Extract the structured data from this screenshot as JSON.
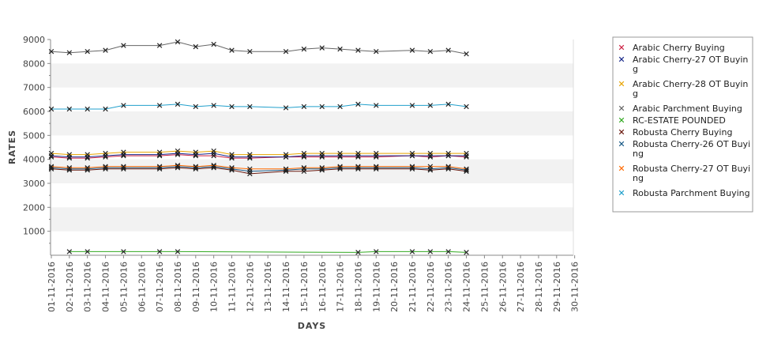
{
  "chart_data": {
    "type": "line",
    "title": "",
    "xlabel": "DAYS",
    "ylabel": "RATES",
    "ylim": [
      0,
      9000
    ],
    "yticks": [
      1000,
      2000,
      3000,
      4000,
      5000,
      6000,
      7000,
      8000,
      9000
    ],
    "grid": "alternating horizontal bands",
    "legend_position": "right",
    "categories": [
      "01-11-2016",
      "02-11-2016",
      "03-11-2016",
      "04-11-2016",
      "05-11-2016",
      "06-11-2016",
      "07-11-2016",
      "08-11-2016",
      "09-11-2016",
      "10-11-2016",
      "11-11-2016",
      "12-11-2016",
      "13-11-2016",
      "14-11-2016",
      "15-11-2016",
      "16-11-2016",
      "17-11-2016",
      "18-11-2016",
      "19-11-2016",
      "20-11-2016",
      "21-11-2016",
      "22-11-2016",
      "23-11-2016",
      "24-11-2016",
      "25-11-2016",
      "26-11-2016",
      "27-11-2016",
      "28-11-2016",
      "29-11-2016",
      "30-11-2016"
    ],
    "series": [
      {
        "name": "Arabic Cherry Buying",
        "legend_lines": [
          "Arabic Cherry Buying"
        ],
        "color": "#cc2244",
        "values": [
          4100,
          4050,
          4050,
          4100,
          4150,
          null,
          4150,
          4200,
          4150,
          4150,
          4050,
          4050,
          null,
          4100,
          4100,
          4100,
          4100,
          4100,
          4100,
          null,
          4150,
          4100,
          4150,
          4100,
          null,
          null,
          null,
          null,
          null,
          null
        ]
      },
      {
        "name": "Arabic Cherry-27 OT Buying",
        "legend_lines": [
          "Arabic Cherry-27 OT Buyin",
          "g"
        ],
        "color": "#1a2a8a",
        "values": [
          4150,
          4100,
          4100,
          4150,
          4200,
          null,
          4200,
          4250,
          4200,
          4250,
          4100,
          4100,
          null,
          4100,
          4150,
          4150,
          4150,
          4150,
          4150,
          null,
          4150,
          4150,
          4150,
          4150,
          null,
          null,
          null,
          null,
          null,
          null
        ]
      },
      {
        "name": "Arabic Cherry-28 OT Buying",
        "legend_lines": [
          "Arabic Cherry-28 OT Buyin",
          "g"
        ],
        "color": "#e8a400",
        "values": [
          4250,
          4200,
          4200,
          4250,
          4300,
          null,
          4300,
          4350,
          4300,
          4350,
          4200,
          4200,
          null,
          4200,
          4250,
          4250,
          4250,
          4250,
          4250,
          null,
          4250,
          4250,
          4250,
          4250,
          null,
          null,
          null,
          null,
          null,
          null
        ]
      },
      {
        "name": "Arabic Parchment Buying",
        "legend_lines": [
          "Arabic Parchment Buying"
        ],
        "color": "#666666",
        "values": [
          8500,
          8450,
          8500,
          8550,
          8750,
          null,
          8750,
          8900,
          8700,
          8800,
          8550,
          8500,
          null,
          8500,
          8600,
          8650,
          8600,
          8550,
          8500,
          null,
          8550,
          8500,
          8550,
          8400,
          null,
          null,
          null,
          null,
          null,
          null
        ]
      },
      {
        "name": "RC-ESTATE POUNDED",
        "legend_lines": [
          "RC-ESTATE POUNDED"
        ],
        "color": "#33aa22",
        "values": [
          null,
          150,
          150,
          null,
          150,
          null,
          150,
          150,
          null,
          null,
          null,
          null,
          null,
          null,
          null,
          null,
          null,
          120,
          150,
          null,
          150,
          150,
          150,
          120,
          null,
          null,
          null,
          null,
          null,
          null
        ]
      },
      {
        "name": "Robusta Cherry Buying",
        "legend_lines": [
          "Robusta Cherry Buying"
        ],
        "color": "#6a1a10",
        "values": [
          3600,
          3550,
          3550,
          3600,
          3600,
          null,
          3600,
          3650,
          3600,
          3650,
          3550,
          3400,
          null,
          3500,
          3500,
          3550,
          3600,
          3600,
          3600,
          null,
          3600,
          3550,
          3600,
          3500,
          null,
          null,
          null,
          null,
          null,
          null
        ]
      },
      {
        "name": "Robusta Cherry-26 OT Buying",
        "legend_lines": [
          "Robusta Cherry-26 OT Buyi",
          "ng"
        ],
        "color": "#1a5a88",
        "values": [
          3650,
          3600,
          3600,
          3650,
          3650,
          null,
          3650,
          3700,
          3650,
          3700,
          3600,
          3500,
          null,
          3550,
          3600,
          3600,
          3650,
          3650,
          3650,
          null,
          3650,
          3600,
          3650,
          3550,
          null,
          null,
          null,
          null,
          null,
          null
        ]
      },
      {
        "name": "Robusta Cherry-27 OT Buying",
        "legend_lines": [
          "Robusta Cherry-27 OT Buyi",
          "ng"
        ],
        "color": "#ff6a00",
        "values": [
          3700,
          3650,
          3650,
          3700,
          3700,
          null,
          3700,
          3750,
          3700,
          3750,
          3650,
          3600,
          null,
          3600,
          3650,
          3650,
          3700,
          3700,
          3700,
          null,
          3700,
          3700,
          3700,
          3600,
          null,
          null,
          null,
          null,
          null,
          null
        ]
      },
      {
        "name": "Robusta Parchment Buying",
        "legend_lines": [
          "Robusta Parchment Buying"
        ],
        "color": "#22a0cc",
        "values": [
          6100,
          6100,
          6100,
          6100,
          6250,
          null,
          6250,
          6300,
          6200,
          6250,
          6200,
          6200,
          null,
          6150,
          6200,
          6200,
          6200,
          6300,
          6250,
          null,
          6250,
          6250,
          6300,
          6200,
          null,
          null,
          null,
          null,
          null,
          null
        ]
      }
    ]
  }
}
